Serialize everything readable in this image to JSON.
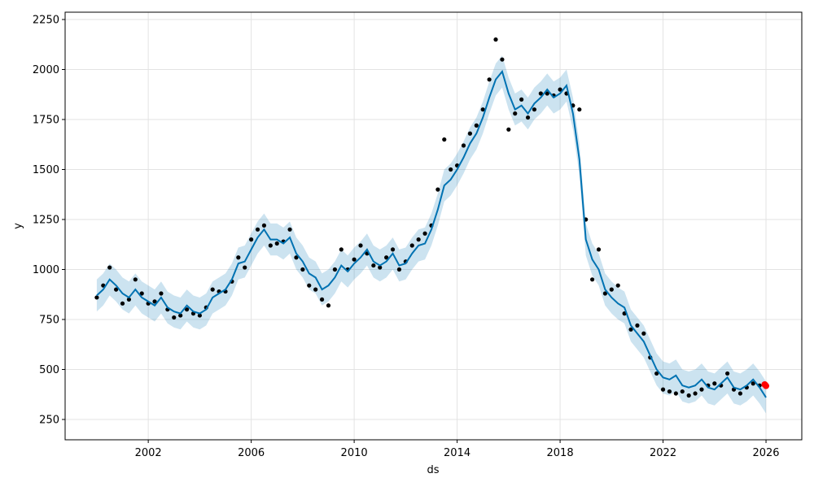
{
  "chart_data": {
    "type": "forecast",
    "xlabel": "ds",
    "ylabel": "y",
    "xlim": [
      1998.77,
      2027.39
    ],
    "ylim": [
      148.4,
      2286.6
    ],
    "xticks": [
      2002,
      2006,
      2010,
      2014,
      2018,
      2022,
      2026
    ],
    "yticks": [
      250,
      500,
      750,
      1000,
      1250,
      1500,
      1750,
      2000,
      2250
    ],
    "grid": true,
    "x": [
      2000,
      2000.25,
      2000.5,
      2000.75,
      2001,
      2001.25,
      2001.5,
      2001.75,
      2002,
      2002.25,
      2002.5,
      2002.75,
      2003,
      2003.25,
      2003.5,
      2003.75,
      2004,
      2004.25,
      2004.5,
      2004.75,
      2005,
      2005.25,
      2005.5,
      2005.75,
      2006,
      2006.25,
      2006.5,
      2006.75,
      2007,
      2007.25,
      2007.5,
      2007.75,
      2008,
      2008.25,
      2008.5,
      2008.75,
      2009,
      2009.25,
      2009.5,
      2009.75,
      2010,
      2010.25,
      2010.5,
      2010.75,
      2011,
      2011.25,
      2011.5,
      2011.75,
      2012,
      2012.25,
      2012.5,
      2012.75,
      2013,
      2013.25,
      2013.5,
      2013.75,
      2014,
      2014.25,
      2014.5,
      2014.75,
      2015,
      2015.25,
      2015.5,
      2015.75,
      2016,
      2016.25,
      2016.5,
      2016.75,
      2017,
      2017.25,
      2017.5,
      2017.75,
      2018,
      2018.25,
      2018.5,
      2018.75,
      2019,
      2019.25,
      2019.5,
      2019.75,
      2020,
      2020.25,
      2020.5,
      2020.75,
      2021,
      2021.25,
      2021.5,
      2021.75,
      2022,
      2022.25,
      2022.5,
      2022.75,
      2023,
      2023.25,
      2023.5,
      2023.75,
      2024,
      2024.25,
      2024.5,
      2024.75,
      2025,
      2025.25,
      2025.5,
      2025.75,
      2026
    ],
    "band_color": "#0072b2",
    "yhat": {
      "color": "#0072b2",
      "values": [
        870,
        900,
        950,
        920,
        880,
        860,
        900,
        860,
        840,
        820,
        860,
        810,
        790,
        780,
        820,
        790,
        780,
        800,
        860,
        880,
        900,
        950,
        1030,
        1040,
        1100,
        1160,
        1200,
        1150,
        1150,
        1130,
        1160,
        1080,
        1040,
        980,
        960,
        900,
        920,
        960,
        1020,
        990,
        1030,
        1060,
        1100,
        1040,
        1020,
        1040,
        1080,
        1020,
        1030,
        1080,
        1120,
        1130,
        1200,
        1300,
        1420,
        1450,
        1500,
        1560,
        1630,
        1680,
        1760,
        1860,
        1950,
        1990,
        1880,
        1800,
        1820,
        1780,
        1830,
        1860,
        1900,
        1860,
        1880,
        1920,
        1780,
        1550,
        1150,
        1050,
        1000,
        900,
        860,
        830,
        810,
        720,
        680,
        640,
        570,
        500,
        460,
        450,
        470,
        420,
        410,
        420,
        450,
        410,
        400,
        430,
        460,
        410,
        400,
        420,
        450,
        410,
        360
      ]
    },
    "yhat_lower": [
      790,
      820,
      870,
      840,
      800,
      780,
      820,
      780,
      760,
      740,
      780,
      730,
      710,
      700,
      740,
      710,
      700,
      720,
      780,
      800,
      820,
      870,
      950,
      960,
      1020,
      1080,
      1120,
      1070,
      1070,
      1050,
      1080,
      1000,
      960,
      900,
      880,
      820,
      840,
      880,
      940,
      910,
      950,
      980,
      1020,
      960,
      940,
      960,
      1000,
      940,
      950,
      1000,
      1040,
      1050,
      1120,
      1220,
      1340,
      1370,
      1420,
      1480,
      1550,
      1600,
      1680,
      1780,
      1870,
      1910,
      1800,
      1720,
      1740,
      1700,
      1750,
      1780,
      1820,
      1780,
      1800,
      1840,
      1700,
      1470,
      1070,
      970,
      920,
      820,
      780,
      750,
      730,
      640,
      600,
      560,
      490,
      420,
      380,
      370,
      390,
      340,
      330,
      340,
      370,
      330,
      320,
      350,
      380,
      330,
      320,
      340,
      370,
      330,
      280
    ],
    "yhat_upper": [
      950,
      980,
      1030,
      1000,
      960,
      940,
      980,
      940,
      920,
      900,
      940,
      890,
      870,
      860,
      900,
      870,
      860,
      880,
      940,
      960,
      980,
      1030,
      1110,
      1120,
      1180,
      1240,
      1280,
      1230,
      1230,
      1210,
      1240,
      1160,
      1120,
      1060,
      1040,
      980,
      1000,
      1040,
      1100,
      1070,
      1110,
      1140,
      1180,
      1120,
      1100,
      1120,
      1160,
      1100,
      1110,
      1160,
      1200,
      1210,
      1280,
      1380,
      1500,
      1530,
      1580,
      1640,
      1710,
      1760,
      1840,
      1940,
      2030,
      2070,
      1960,
      1880,
      1900,
      1860,
      1910,
      1940,
      1980,
      1940,
      1960,
      2000,
      1860,
      1630,
      1230,
      1130,
      1080,
      980,
      940,
      910,
      890,
      800,
      760,
      720,
      650,
      580,
      540,
      530,
      550,
      500,
      490,
      500,
      530,
      490,
      480,
      510,
      540,
      490,
      480,
      500,
      530,
      490,
      440
    ],
    "observed": {
      "color": "#000000",
      "values": [
        860,
        920,
        1010,
        900,
        830,
        850,
        950,
        880,
        830,
        840,
        880,
        800,
        760,
        770,
        800,
        780,
        770,
        810,
        900,
        890,
        890,
        940,
        1060,
        1010,
        1150,
        1200,
        1220,
        1120,
        1130,
        1140,
        1200,
        1060,
        1000,
        920,
        900,
        850,
        820,
        1000,
        1100,
        1000,
        1050,
        1120,
        1080,
        1020,
        1010,
        1060,
        1100,
        1000,
        1040,
        1120,
        1150,
        1180,
        1220,
        1400,
        1650,
        1500,
        1520,
        1620,
        1680,
        1720,
        1800,
        1950,
        2150,
        2050,
        1700,
        1780,
        1850,
        1760,
        1800,
        1880,
        1880,
        1870,
        1900,
        1880,
        1820,
        1800,
        1250,
        950,
        1100,
        880,
        900,
        920,
        780,
        700,
        720,
        680,
        560,
        480,
        400,
        390,
        380,
        390,
        370,
        380,
        400,
        420,
        430,
        420,
        480,
        400,
        380,
        410,
        430,
        420,
        420
      ]
    },
    "highlight": {
      "color": "#ff0000",
      "x": [
        2025.95,
        2026.0
      ],
      "values": [
        425,
        418
      ]
    }
  }
}
